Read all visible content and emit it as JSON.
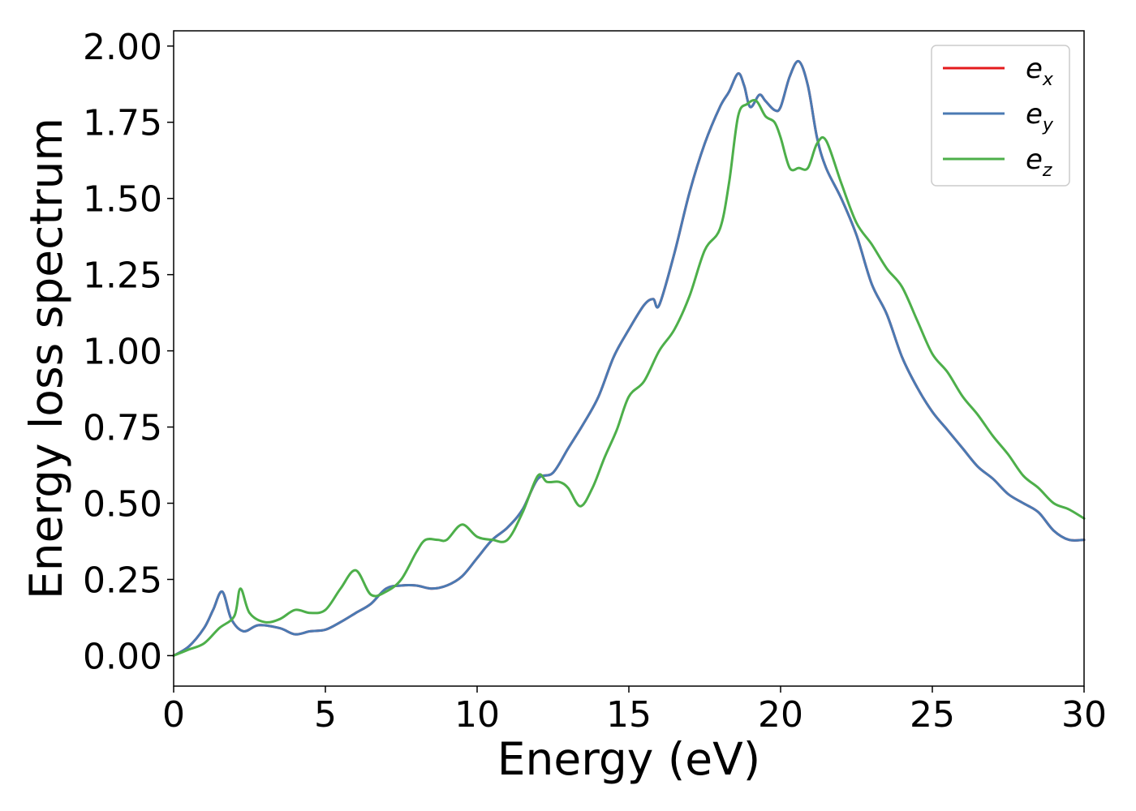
{
  "chart_data": {
    "type": "line",
    "title": "",
    "xlabel": "Energy (eV)",
    "ylabel": "Energy loss spectrum",
    "xlim": [
      0,
      30
    ],
    "ylim": [
      -0.1,
      2.05
    ],
    "xticks": [
      0,
      5,
      10,
      15,
      20,
      25,
      30
    ],
    "xtick_labels": [
      "0",
      "5",
      "10",
      "15",
      "20",
      "25",
      "30"
    ],
    "yticks": [
      0,
      0.25,
      0.5,
      0.75,
      1.0,
      1.25,
      1.5,
      1.75,
      2.0
    ],
    "ytick_labels": [
      "0.00",
      "0.25",
      "0.50",
      "0.75",
      "1.00",
      "1.25",
      "1.50",
      "1.75",
      "2.00"
    ],
    "grid": false,
    "legend_position": "top-right",
    "series": [
      {
        "name": "e_x",
        "label_base": "e",
        "label_sub": "x",
        "color": "#e41a1c",
        "x": [
          0,
          0.5,
          1.0,
          1.3,
          1.6,
          1.9,
          2.3,
          2.8,
          3.5,
          4.0,
          4.5,
          5.0,
          5.5,
          6.0,
          6.5,
          7.0,
          7.5,
          8.0,
          8.5,
          9.0,
          9.5,
          10.0,
          10.5,
          11.0,
          11.5,
          12.0,
          12.5,
          13.0,
          13.5,
          14.0,
          14.5,
          15.0,
          15.5,
          15.8,
          16.0,
          16.5,
          17.0,
          17.5,
          18.0,
          18.3,
          18.6,
          18.8,
          19.0,
          19.3,
          19.5,
          19.8,
          20.0,
          20.3,
          20.6,
          20.9,
          21.2,
          21.5,
          22.0,
          22.5,
          23.0,
          23.5,
          24.0,
          24.5,
          25.0,
          25.5,
          26.0,
          26.5,
          27.0,
          27.5,
          28.0,
          28.5,
          29.0,
          29.5,
          30.0
        ],
        "values": [
          0.0,
          0.03,
          0.09,
          0.15,
          0.21,
          0.12,
          0.08,
          0.1,
          0.09,
          0.07,
          0.08,
          0.085,
          0.11,
          0.14,
          0.17,
          0.22,
          0.23,
          0.23,
          0.22,
          0.23,
          0.26,
          0.32,
          0.38,
          0.42,
          0.48,
          0.58,
          0.6,
          0.68,
          0.76,
          0.85,
          0.98,
          1.07,
          1.15,
          1.17,
          1.15,
          1.32,
          1.52,
          1.68,
          1.8,
          1.85,
          1.91,
          1.87,
          1.8,
          1.84,
          1.82,
          1.79,
          1.8,
          1.9,
          1.95,
          1.87,
          1.7,
          1.6,
          1.5,
          1.38,
          1.22,
          1.12,
          0.98,
          0.88,
          0.8,
          0.74,
          0.68,
          0.62,
          0.58,
          0.53,
          0.5,
          0.47,
          0.41,
          0.38,
          0.38
        ]
      },
      {
        "name": "e_y",
        "label_base": "e",
        "label_sub": "y",
        "color": "#4a7ab3",
        "x": [
          0,
          0.5,
          1.0,
          1.3,
          1.6,
          1.9,
          2.3,
          2.8,
          3.5,
          4.0,
          4.5,
          5.0,
          5.5,
          6.0,
          6.5,
          7.0,
          7.5,
          8.0,
          8.5,
          9.0,
          9.5,
          10.0,
          10.5,
          11.0,
          11.5,
          12.0,
          12.5,
          13.0,
          13.5,
          14.0,
          14.5,
          15.0,
          15.5,
          15.8,
          16.0,
          16.5,
          17.0,
          17.5,
          18.0,
          18.3,
          18.6,
          18.8,
          19.0,
          19.3,
          19.5,
          19.8,
          20.0,
          20.3,
          20.6,
          20.9,
          21.2,
          21.5,
          22.0,
          22.5,
          23.0,
          23.5,
          24.0,
          24.5,
          25.0,
          25.5,
          26.0,
          26.5,
          27.0,
          27.5,
          28.0,
          28.5,
          29.0,
          29.5,
          30.0
        ],
        "values": [
          0.0,
          0.03,
          0.09,
          0.15,
          0.21,
          0.12,
          0.08,
          0.1,
          0.09,
          0.07,
          0.08,
          0.085,
          0.11,
          0.14,
          0.17,
          0.22,
          0.23,
          0.23,
          0.22,
          0.23,
          0.26,
          0.32,
          0.38,
          0.42,
          0.48,
          0.58,
          0.6,
          0.68,
          0.76,
          0.85,
          0.98,
          1.07,
          1.15,
          1.17,
          1.15,
          1.32,
          1.52,
          1.68,
          1.8,
          1.85,
          1.91,
          1.87,
          1.8,
          1.84,
          1.82,
          1.79,
          1.8,
          1.9,
          1.95,
          1.87,
          1.7,
          1.6,
          1.5,
          1.38,
          1.22,
          1.12,
          0.98,
          0.88,
          0.8,
          0.74,
          0.68,
          0.62,
          0.58,
          0.53,
          0.5,
          0.47,
          0.41,
          0.38,
          0.38
        ]
      },
      {
        "name": "e_z",
        "label_base": "e",
        "label_sub": "z",
        "color": "#4daf4a",
        "x": [
          0,
          0.5,
          1.0,
          1.5,
          2.0,
          2.2,
          2.5,
          3.0,
          3.5,
          4.0,
          4.5,
          5.0,
          5.5,
          6.0,
          6.5,
          7.0,
          7.5,
          8.0,
          8.3,
          8.7,
          9.0,
          9.5,
          10.0,
          10.5,
          11.0,
          11.5,
          12.0,
          12.3,
          12.7,
          13.0,
          13.4,
          13.8,
          14.2,
          14.6,
          15.0,
          15.5,
          16.0,
          16.5,
          17.0,
          17.5,
          18.0,
          18.3,
          18.6,
          18.9,
          19.2,
          19.5,
          19.8,
          20.0,
          20.3,
          20.6,
          20.9,
          21.2,
          21.5,
          22.0,
          22.5,
          23.0,
          23.5,
          24.0,
          24.5,
          25.0,
          25.5,
          26.0,
          26.5,
          27.0,
          27.5,
          28.0,
          28.5,
          29.0,
          29.5,
          30.0
        ],
        "values": [
          0.0,
          0.02,
          0.04,
          0.09,
          0.13,
          0.22,
          0.14,
          0.11,
          0.12,
          0.15,
          0.14,
          0.15,
          0.22,
          0.28,
          0.2,
          0.21,
          0.25,
          0.34,
          0.38,
          0.38,
          0.38,
          0.43,
          0.39,
          0.38,
          0.38,
          0.47,
          0.59,
          0.57,
          0.57,
          0.55,
          0.49,
          0.55,
          0.65,
          0.74,
          0.85,
          0.9,
          1.0,
          1.07,
          1.18,
          1.33,
          1.4,
          1.55,
          1.77,
          1.81,
          1.82,
          1.77,
          1.75,
          1.7,
          1.6,
          1.6,
          1.6,
          1.68,
          1.69,
          1.55,
          1.42,
          1.35,
          1.27,
          1.21,
          1.1,
          0.99,
          0.93,
          0.85,
          0.79,
          0.72,
          0.66,
          0.59,
          0.55,
          0.5,
          0.48,
          0.45
        ]
      }
    ]
  }
}
